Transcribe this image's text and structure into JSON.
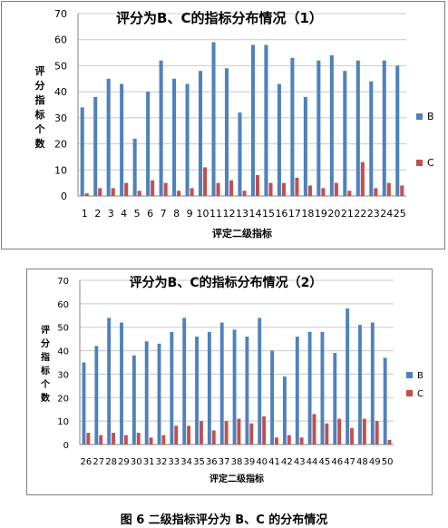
{
  "colors": {
    "B": "#4f81bd",
    "C": "#c0504d",
    "grid": "#c8c8c8",
    "axis": "#868686"
  },
  "caption": "图 6 二级指标评分为 B、C 的分布情况",
  "chart_data": [
    {
      "type": "bar",
      "title": "评分为B、C的指标分布情况（1）",
      "xlabel": "评定二级指标",
      "ylabel": "评分指标个数",
      "ylim": [
        0,
        70
      ],
      "yticks": [
        "0",
        "10",
        "20",
        "30",
        "40",
        "50",
        "60",
        "70"
      ],
      "categories": [
        "1",
        "2",
        "3",
        "4",
        "5",
        "6",
        "7",
        "8",
        "9",
        "10",
        "11",
        "12",
        "13",
        "14",
        "15",
        "16",
        "17",
        "18",
        "19",
        "20",
        "21",
        "22",
        "23",
        "24",
        "25"
      ],
      "series": [
        {
          "name": "B",
          "values": [
            34,
            38,
            45,
            43,
            22,
            40,
            52,
            45,
            43,
            48,
            59,
            49,
            32,
            58,
            58,
            43,
            53,
            38,
            52,
            54,
            48,
            52,
            44,
            52,
            50
          ]
        },
        {
          "name": "C",
          "values": [
            1,
            3,
            3,
            5,
            2,
            6,
            5,
            2,
            3,
            11,
            5,
            6,
            2,
            8,
            5,
            5,
            7,
            4,
            3,
            5,
            2,
            13,
            3,
            5,
            4
          ]
        }
      ],
      "grid": true,
      "legend": "right"
    },
    {
      "type": "bar",
      "title": "评分为B、C的指标分布情况（2）",
      "xlabel": "评定二级指标",
      "ylabel": "评分指标个数",
      "ylim": [
        0,
        70
      ],
      "yticks": [
        "0",
        "10",
        "20",
        "30",
        "40",
        "50",
        "60",
        "70"
      ],
      "categories": [
        "26",
        "27",
        "28",
        "29",
        "30",
        "31",
        "32",
        "33",
        "34",
        "35",
        "36",
        "37",
        "38",
        "39",
        "40",
        "41",
        "42",
        "43",
        "44",
        "45",
        "46",
        "47",
        "48",
        "49",
        "50"
      ],
      "series": [
        {
          "name": "B",
          "values": [
            35,
            42,
            54,
            52,
            38,
            44,
            43,
            48,
            54,
            46,
            48,
            52,
            49,
            46,
            54,
            40,
            29,
            46,
            48,
            48,
            39,
            58,
            51,
            52,
            37
          ]
        },
        {
          "name": "C",
          "values": [
            5,
            4,
            5,
            4,
            5,
            3,
            4,
            8,
            8,
            10,
            6,
            10,
            11,
            9,
            12,
            3,
            4,
            3,
            13,
            9,
            11,
            7,
            11,
            10,
            2
          ]
        }
      ],
      "grid": true,
      "legend": "right"
    }
  ]
}
